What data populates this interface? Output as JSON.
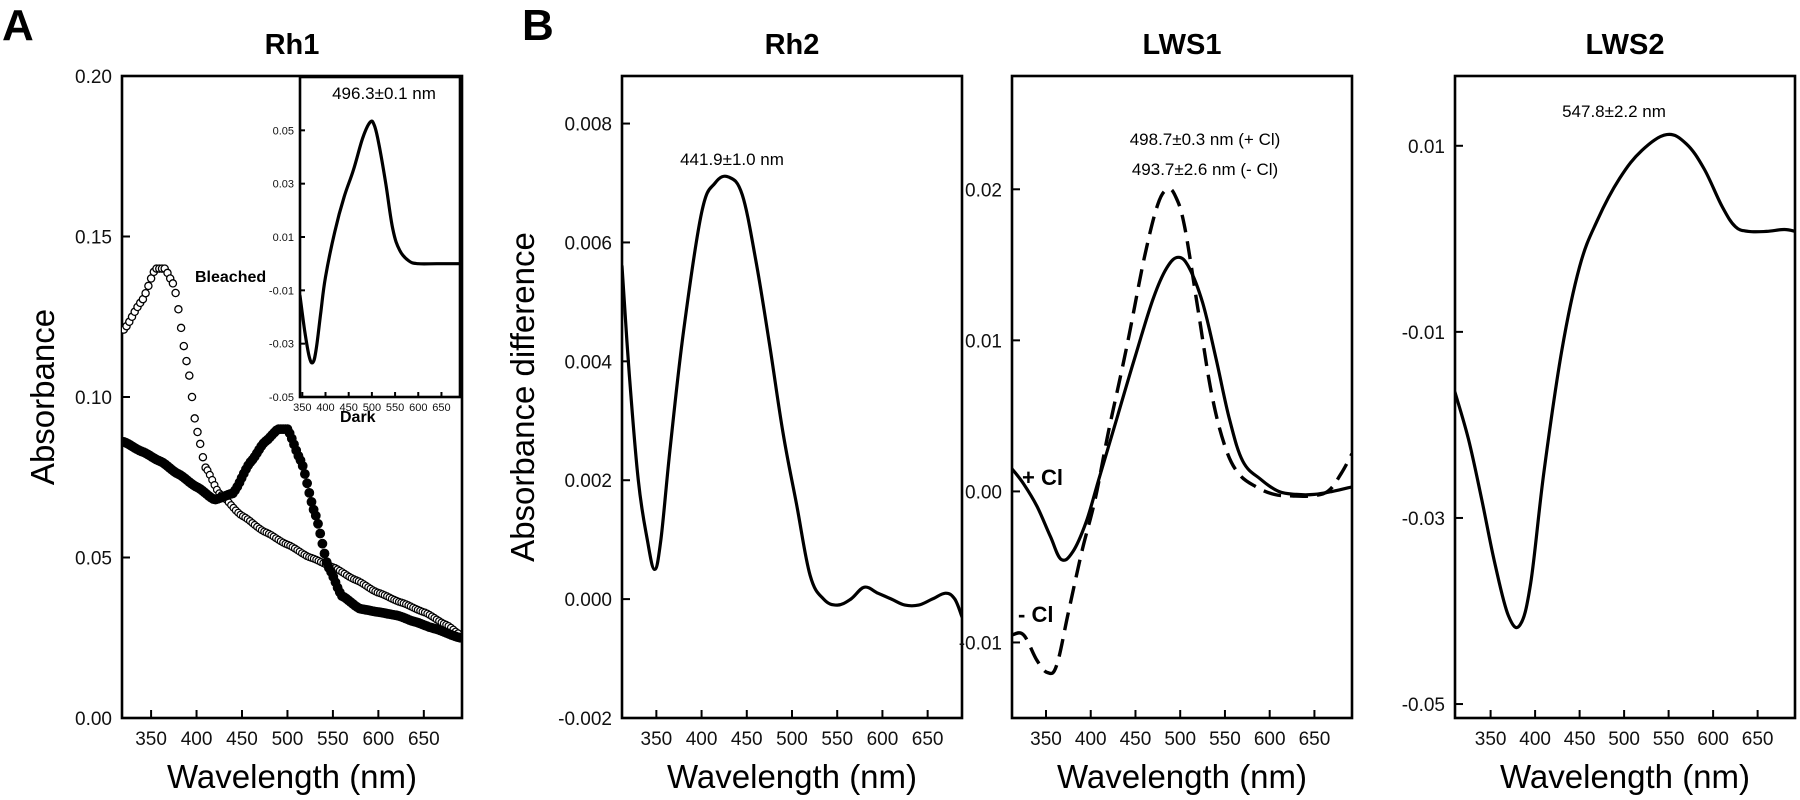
{
  "panel_labels": [
    "A",
    "B"
  ],
  "chart_data": [
    {
      "id": "rh1",
      "type": "scatter",
      "title": "Rh1",
      "xlabel": "Wavelength (nm)",
      "ylabel": "Absorbance",
      "xlim": [
        318,
        692
      ],
      "ylim": [
        0,
        0.2
      ],
      "xticks": [
        "350",
        "400",
        "450",
        "500",
        "550",
        "600",
        "650"
      ],
      "xtick_values": [
        350,
        400,
        450,
        500,
        550,
        600,
        650
      ],
      "yticks": [
        "0.00",
        "0.05",
        "0.10",
        "0.15",
        "0.20"
      ],
      "ytick_values": [
        0,
        0.05,
        0.1,
        0.15,
        0.2
      ],
      "series": [
        {
          "name": "Bleached",
          "marker": "open-circle",
          "x": [
            320,
            340,
            355,
            365,
            375,
            390,
            400,
            410,
            425,
            450,
            475,
            500,
            525,
            550,
            575,
            600,
            625,
            650,
            675,
            690
          ],
          "y": [
            0.121,
            0.13,
            0.14,
            0.14,
            0.135,
            0.11,
            0.09,
            0.078,
            0.07,
            0.063,
            0.058,
            0.054,
            0.05,
            0.047,
            0.043,
            0.039,
            0.036,
            0.033,
            0.029,
            0.026
          ]
        },
        {
          "name": "Dark",
          "marker": "filled-circle",
          "x": [
            320,
            340,
            360,
            380,
            400,
            420,
            440,
            460,
            475,
            490,
            500,
            515,
            530,
            545,
            560,
            580,
            600,
            620,
            640,
            660,
            690
          ],
          "y": [
            0.086,
            0.083,
            0.08,
            0.076,
            0.072,
            0.068,
            0.07,
            0.08,
            0.086,
            0.09,
            0.09,
            0.08,
            0.064,
            0.047,
            0.038,
            0.034,
            0.033,
            0.032,
            0.03,
            0.028,
            0.025
          ]
        }
      ],
      "annotations": [
        "Bleached",
        "Dark"
      ],
      "inset": {
        "type": "line",
        "label": "496.3±0.1 nm",
        "xlim": [
          345,
          690
        ],
        "ylim": [
          -0.05,
          0.07
        ],
        "xticks": [
          "350",
          "400",
          "450",
          "500",
          "550",
          "600",
          "650"
        ],
        "xtick_values": [
          350,
          400,
          450,
          500,
          550,
          600,
          650
        ],
        "yticks": [
          "0.05",
          "0.03",
          "0.01",
          "-0.01",
          "-0.03",
          "-0.05"
        ],
        "ytick_values": [
          0.05,
          0.03,
          0.01,
          -0.01,
          -0.03,
          -0.05
        ],
        "series": [
          {
            "x": [
              345,
              355,
              365,
              373,
              380,
              390,
              400,
              420,
              440,
              460,
              480,
              496,
              505,
              515,
              530,
              545,
              560,
              580,
              600,
              640,
              690
            ],
            "y": [
              -0.012,
              -0.025,
              -0.035,
              -0.037,
              -0.032,
              -0.018,
              -0.005,
              0.012,
              0.025,
              0.035,
              0.047,
              0.053,
              0.052,
              0.045,
              0.03,
              0.013,
              0.005,
              0.001,
              0.0,
              0.0,
              0.0
            ]
          }
        ]
      }
    },
    {
      "id": "rh2",
      "type": "line",
      "title": "Rh2",
      "xlabel": "Wavelength (nm)",
      "ylabel": "Absorbance difference",
      "xlim": [
        312,
        688
      ],
      "ylim": [
        -0.002,
        0.0088
      ],
      "xticks": [
        "350",
        "400",
        "450",
        "500",
        "550",
        "600",
        "650"
      ],
      "xtick_values": [
        350,
        400,
        450,
        500,
        550,
        600,
        650
      ],
      "yticks": [
        "-0.002",
        "0.000",
        "0.002",
        "0.004",
        "0.006",
        "0.008"
      ],
      "ytick_values": [
        -0.002,
        0.0,
        0.002,
        0.004,
        0.006,
        0.008
      ],
      "annotation": "441.9±1.0 nm",
      "series": [
        {
          "x": [
            312,
            320,
            330,
            340,
            348,
            355,
            365,
            380,
            400,
            415,
            430,
            445,
            460,
            475,
            490,
            505,
            520,
            535,
            550,
            565,
            580,
            595,
            610,
            625,
            640,
            655,
            670,
            680,
            688
          ],
          "y": [
            0.0056,
            0.0038,
            0.002,
            0.001,
            0.0005,
            0.001,
            0.0025,
            0.0045,
            0.0065,
            0.007,
            0.0071,
            0.0068,
            0.0057,
            0.0043,
            0.0028,
            0.0016,
            0.0004,
            0.0,
            -0.0001,
            0.0,
            0.0002,
            0.0001,
            0.0,
            -0.0001,
            -0.0001,
            0.0,
            0.0001,
            0.0,
            -0.0003
          ]
        }
      ]
    },
    {
      "id": "lws1",
      "type": "line",
      "title": "LWS1",
      "xlabel": "Wavelength (nm)",
      "ylabel": "",
      "xlim": [
        312,
        692
      ],
      "ylim": [
        -0.015,
        0.0275
      ],
      "xticks": [
        "350",
        "400",
        "450",
        "500",
        "550",
        "600",
        "650"
      ],
      "xtick_values": [
        350,
        400,
        450,
        500,
        550,
        600,
        650
      ],
      "yticks": [
        "-0.01",
        "0.00",
        "0.01",
        "0.02"
      ],
      "ytick_values": [
        -0.01,
        0.0,
        0.01,
        0.02
      ],
      "annotations": [
        "498.7±0.3 nm (+ Cl)",
        "493.7±2.6 nm (- Cl)"
      ],
      "curve_labels": [
        "+ Cl",
        "- Cl"
      ],
      "series": [
        {
          "name": "+ Cl",
          "style": "solid",
          "x": [
            312,
            325,
            340,
            355,
            367,
            380,
            395,
            410,
            430,
            450,
            470,
            485,
            498,
            510,
            525,
            540,
            555,
            570,
            590,
            610,
            630,
            650,
            670,
            692
          ],
          "y": [
            0.0015,
            0.0005,
            -0.001,
            -0.003,
            -0.0045,
            -0.004,
            -0.002,
            0.001,
            0.005,
            0.009,
            0.0128,
            0.0148,
            0.0155,
            0.0148,
            0.0125,
            0.0088,
            0.0048,
            0.002,
            0.0008,
            0.0,
            -0.0002,
            -0.0002,
            0.0,
            0.0003
          ]
        },
        {
          "name": "- Cl",
          "style": "dashed",
          "x": [
            312,
            325,
            340,
            352,
            362,
            375,
            390,
            405,
            420,
            440,
            460,
            475,
            486,
            495,
            505,
            520,
            535,
            550,
            565,
            585,
            605,
            625,
            645,
            665,
            680,
            692
          ],
          "y": [
            -0.0095,
            -0.0095,
            -0.0112,
            -0.012,
            -0.0115,
            -0.008,
            -0.004,
            -0.0005,
            0.004,
            0.0095,
            0.0155,
            0.019,
            0.02,
            0.0195,
            0.0175,
            0.012,
            0.0065,
            0.003,
            0.0012,
            0.0003,
            -0.0002,
            -0.0003,
            -0.0003,
            0.0,
            0.0012,
            0.0025
          ]
        }
      ]
    },
    {
      "id": "lws2",
      "type": "line",
      "title": "LWS2",
      "xlabel": "Wavelength (nm)",
      "ylabel": "",
      "xlim": [
        310,
        692
      ],
      "ylim": [
        -0.0515,
        0.0175
      ],
      "xticks": [
        "350",
        "400",
        "450",
        "500",
        "550",
        "600",
        "650"
      ],
      "xtick_values": [
        350,
        400,
        450,
        500,
        550,
        600,
        650
      ],
      "yticks": [
        "-0.05",
        "-0.03",
        "-0.01",
        "0.01"
      ],
      "ytick_values": [
        -0.05,
        -0.03,
        -0.01,
        0.01
      ],
      "annotation": "547.8±2.2 nm",
      "series": [
        {
          "x": [
            310,
            325,
            340,
            355,
            370,
            383,
            395,
            410,
            430,
            450,
            470,
            495,
            520,
            548,
            570,
            590,
            610,
            625,
            640,
            660,
            680,
            692
          ],
          "y": [
            -0.0165,
            -0.0215,
            -0.028,
            -0.035,
            -0.0405,
            -0.0415,
            -0.037,
            -0.025,
            -0.012,
            -0.003,
            0.002,
            0.0065,
            0.0095,
            0.0112,
            0.0102,
            0.0075,
            0.0035,
            0.0013,
            0.0008,
            0.0008,
            0.001,
            0.0008
          ]
        }
      ]
    }
  ]
}
